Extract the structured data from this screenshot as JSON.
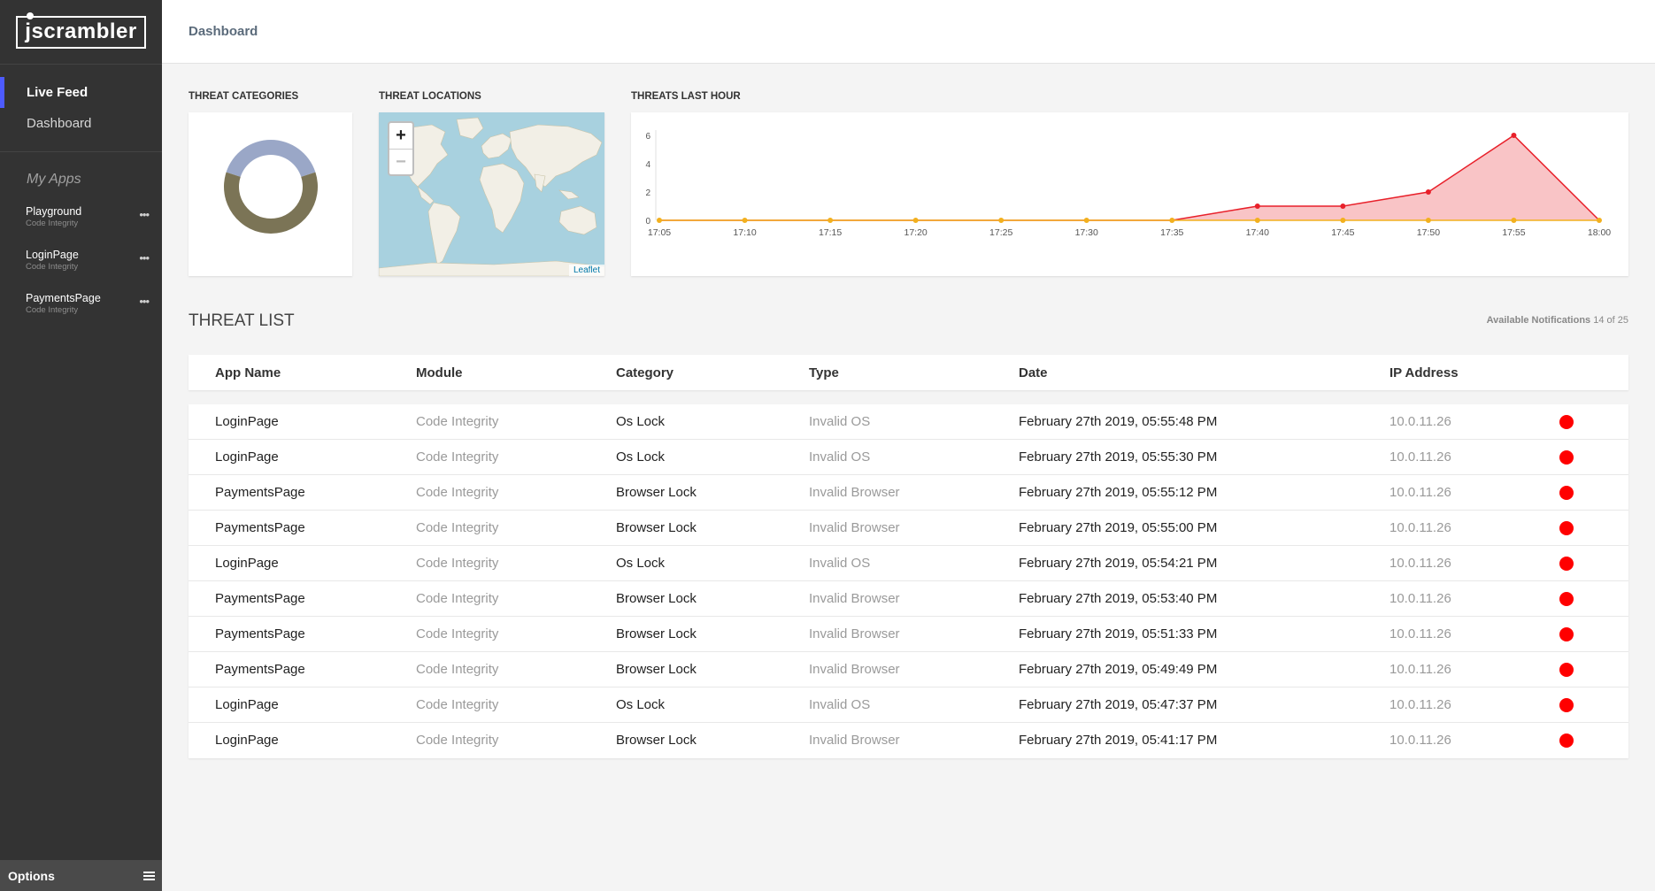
{
  "sidebar": {
    "logo_text": "jscrambler",
    "nav": [
      {
        "label": "Live Feed",
        "active": true
      },
      {
        "label": "Dashboard",
        "active": false
      }
    ],
    "apps_title": "My Apps",
    "apps": [
      {
        "name": "Playground",
        "module": "Code Integrity"
      },
      {
        "name": "LoginPage",
        "module": "Code Integrity"
      },
      {
        "name": "PaymentsPage",
        "module": "Code Integrity"
      }
    ],
    "options_label": "Options"
  },
  "header": {
    "title": "Dashboard"
  },
  "threat_categories": {
    "label": "THREAT CATEGORIES",
    "segments": [
      {
        "color": "#9aa7c7",
        "fraction": 0.4
      },
      {
        "color": "#7b7456",
        "fraction": 0.6
      }
    ]
  },
  "threat_locations": {
    "label": "THREAT LOCATIONS",
    "zoom_in": "+",
    "zoom_out": "−",
    "attribution": "Leaflet"
  },
  "threats_last_hour": {
    "label": "THREATS LAST HOUR",
    "chart_data": {
      "type": "area",
      "x": [
        "17:05",
        "17:10",
        "17:15",
        "17:20",
        "17:25",
        "17:30",
        "17:35",
        "17:40",
        "17:45",
        "17:50",
        "17:55",
        "18:00"
      ],
      "series": [
        {
          "values": [
            0,
            0,
            0,
            0,
            0,
            0,
            0,
            1,
            1,
            2,
            6,
            0
          ],
          "color": "#e8202a",
          "fill": "#f9c4c6"
        },
        {
          "values": [
            0,
            0,
            0,
            0,
            0,
            0,
            0,
            0,
            0,
            0,
            0,
            0
          ],
          "color": "#f2b01e"
        }
      ],
      "yticks": [
        "0",
        "2",
        "4",
        "6"
      ],
      "ylim": [
        0,
        6
      ]
    }
  },
  "threat_list": {
    "title": "THREAT LIST",
    "notifications_label": "Available Notifications",
    "notifications_count": "14 of 25",
    "columns": [
      "App Name",
      "Module",
      "Category",
      "Type",
      "Date",
      "IP Address"
    ],
    "rows": [
      {
        "app": "LoginPage",
        "module": "Code Integrity",
        "category": "Os Lock",
        "type": "Invalid OS",
        "date": "February 27th 2019, 05:55:48 PM",
        "ip": "10.0.11.26"
      },
      {
        "app": "LoginPage",
        "module": "Code Integrity",
        "category": "Os Lock",
        "type": "Invalid OS",
        "date": "February 27th 2019, 05:55:30 PM",
        "ip": "10.0.11.26"
      },
      {
        "app": "PaymentsPage",
        "module": "Code Integrity",
        "category": "Browser Lock",
        "type": "Invalid Browser",
        "date": "February 27th 2019, 05:55:12 PM",
        "ip": "10.0.11.26"
      },
      {
        "app": "PaymentsPage",
        "module": "Code Integrity",
        "category": "Browser Lock",
        "type": "Invalid Browser",
        "date": "February 27th 2019, 05:55:00 PM",
        "ip": "10.0.11.26"
      },
      {
        "app": "LoginPage",
        "module": "Code Integrity",
        "category": "Os Lock",
        "type": "Invalid OS",
        "date": "February 27th 2019, 05:54:21 PM",
        "ip": "10.0.11.26"
      },
      {
        "app": "PaymentsPage",
        "module": "Code Integrity",
        "category": "Browser Lock",
        "type": "Invalid Browser",
        "date": "February 27th 2019, 05:53:40 PM",
        "ip": "10.0.11.26"
      },
      {
        "app": "PaymentsPage",
        "module": "Code Integrity",
        "category": "Browser Lock",
        "type": "Invalid Browser",
        "date": "February 27th 2019, 05:51:33 PM",
        "ip": "10.0.11.26"
      },
      {
        "app": "PaymentsPage",
        "module": "Code Integrity",
        "category": "Browser Lock",
        "type": "Invalid Browser",
        "date": "February 27th 2019, 05:49:49 PM",
        "ip": "10.0.11.26"
      },
      {
        "app": "LoginPage",
        "module": "Code Integrity",
        "category": "Os Lock",
        "type": "Invalid OS",
        "date": "February 27th 2019, 05:47:37 PM",
        "ip": "10.0.11.26"
      },
      {
        "app": "LoginPage",
        "module": "Code Integrity",
        "category": "Browser Lock",
        "type": "Invalid Browser",
        "date": "February 27th 2019, 05:41:17 PM",
        "ip": "10.0.11.26"
      }
    ]
  }
}
